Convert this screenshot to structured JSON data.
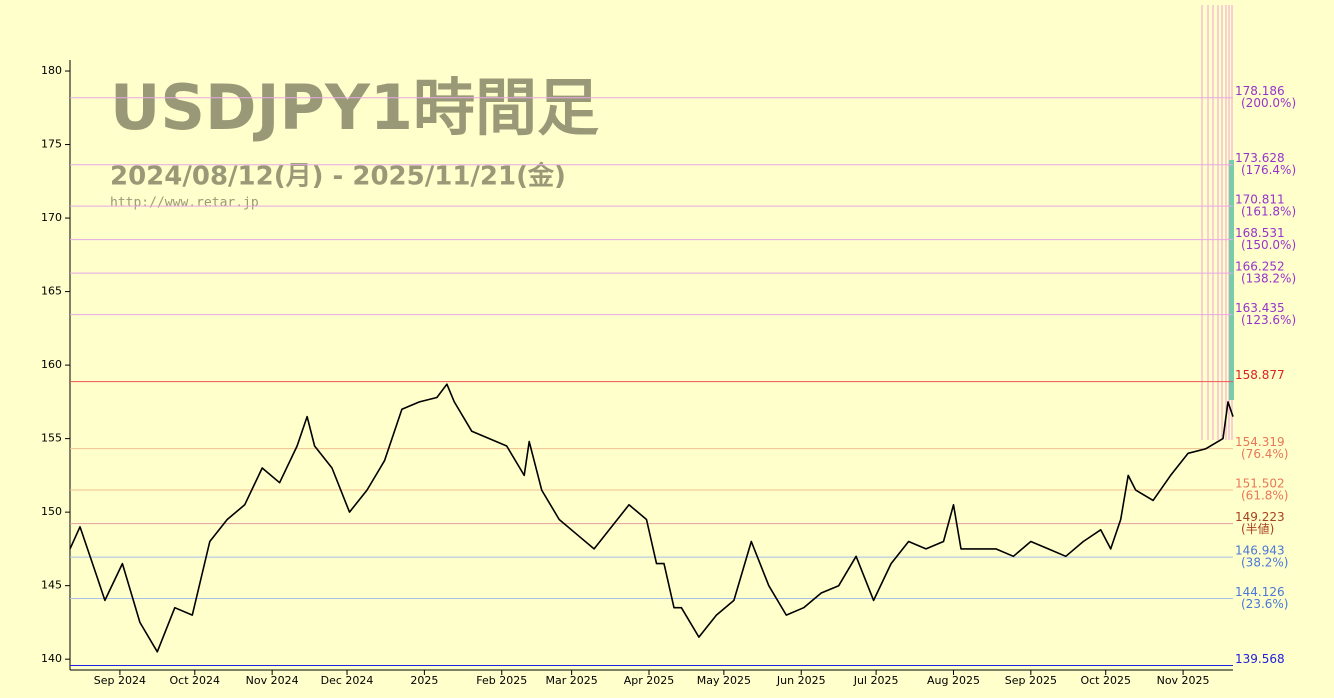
{
  "chart_data": {
    "type": "line",
    "title": "USDJPY1時間足",
    "subtitle": "2024/08/12(月) - 2025/11/21(金)",
    "source": "http://www.retar.jp",
    "color": "#000000",
    "x": [
      "2024-08-12",
      "2024-08-16",
      "2024-08-23",
      "2024-08-26",
      "2024-09-02",
      "2024-09-09",
      "2024-09-16",
      "2024-09-23",
      "2024-09-30",
      "2024-10-07",
      "2024-10-14",
      "2024-10-21",
      "2024-10-28",
      "2024-11-04",
      "2024-11-11",
      "2024-11-15",
      "2024-11-18",
      "2024-11-25",
      "2024-12-02",
      "2024-12-09",
      "2024-12-16",
      "2024-12-23",
      "2024-12-30",
      "2025-01-06",
      "2025-01-10",
      "2025-01-13",
      "2025-01-20",
      "2025-01-27",
      "2025-02-03",
      "2025-02-10",
      "2025-02-12",
      "2025-02-17",
      "2025-02-24",
      "2025-03-03",
      "2025-03-10",
      "2025-03-17",
      "2025-03-24",
      "2025-03-31",
      "2025-04-04",
      "2025-04-07",
      "2025-04-11",
      "2025-04-14",
      "2025-04-21",
      "2025-04-28",
      "2025-05-05",
      "2025-05-12",
      "2025-05-19",
      "2025-05-26",
      "2025-06-02",
      "2025-06-09",
      "2025-06-16",
      "2025-06-23",
      "2025-06-30",
      "2025-07-07",
      "2025-07-14",
      "2025-07-21",
      "2025-07-28",
      "2025-08-01",
      "2025-08-04",
      "2025-08-11",
      "2025-08-18",
      "2025-08-25",
      "2025-09-01",
      "2025-09-08",
      "2025-09-15",
      "2025-09-22",
      "2025-09-29",
      "2025-10-03",
      "2025-10-07",
      "2025-10-10",
      "2025-10-13",
      "2025-10-20",
      "2025-10-27",
      "2025-11-03",
      "2025-11-10",
      "2025-11-17",
      "2025-11-19",
      "2025-11-21"
    ],
    "values": [
      147.5,
      149.0,
      145.5,
      144.0,
      146.5,
      142.5,
      140.5,
      143.5,
      143.0,
      148.0,
      149.5,
      150.5,
      153.0,
      152.0,
      154.5,
      156.5,
      154.5,
      153.0,
      150.0,
      151.5,
      153.5,
      157.0,
      157.5,
      157.8,
      158.7,
      157.5,
      155.5,
      155.0,
      154.5,
      152.5,
      154.8,
      151.5,
      149.5,
      148.5,
      147.5,
      149.0,
      150.5,
      149.5,
      146.5,
      146.5,
      143.5,
      143.5,
      141.5,
      143.0,
      144.0,
      148.0,
      145.0,
      143.0,
      143.5,
      144.5,
      145.0,
      147.0,
      144.0,
      146.5,
      148.0,
      147.5,
      148.0,
      150.5,
      147.5,
      147.5,
      147.5,
      147.0,
      148.0,
      147.5,
      147.0,
      148.0,
      148.8,
      147.5,
      149.5,
      152.5,
      151.5,
      150.8,
      152.5,
      154.0,
      154.3,
      155.0,
      157.5,
      156.5
    ],
    "xlim": [
      "2024-08-12",
      "2025-11-21"
    ],
    "xticks": [
      {
        "value": "2024-09-01",
        "label": "Sep 2024"
      },
      {
        "value": "2024-10-01",
        "label": "Oct 2024"
      },
      {
        "value": "2024-11-01",
        "label": "Nov 2024"
      },
      {
        "value": "2024-12-01",
        "label": "Dec 2024"
      },
      {
        "value": "2025-01-01",
        "label": "2025"
      },
      {
        "value": "2025-02-01",
        "label": "Feb 2025"
      },
      {
        "value": "2025-03-01",
        "label": "Mar 2025"
      },
      {
        "value": "2025-04-01",
        "label": "Apr 2025"
      },
      {
        "value": "2025-05-01",
        "label": "May 2025"
      },
      {
        "value": "2025-06-01",
        "label": "Jun 2025"
      },
      {
        "value": "2025-07-01",
        "label": "Jul 2025"
      },
      {
        "value": "2025-08-01",
        "label": "Aug 2025"
      },
      {
        "value": "2025-09-01",
        "label": "Sep 2025"
      },
      {
        "value": "2025-10-01",
        "label": "Oct 2025"
      },
      {
        "value": "2025-11-01",
        "label": "Nov 2025"
      }
    ],
    "ylim": [
      139.4,
      180.75
    ],
    "yticks": [
      140,
      145,
      150,
      155,
      160,
      165,
      170,
      175,
      180
    ],
    "levels": [
      {
        "value": 178.186,
        "label": "(200.0%)",
        "color": "#9933cc",
        "line_color": "#e8a8e8"
      },
      {
        "value": 173.628,
        "label": "(176.4%)",
        "color": "#9933cc",
        "line_color": "#e8a8e8"
      },
      {
        "value": 170.811,
        "label": "(161.8%)",
        "color": "#9933cc",
        "line_color": "#e8a8e8"
      },
      {
        "value": 168.531,
        "label": "(150.0%)",
        "color": "#9933cc",
        "line_color": "#e8a8e8"
      },
      {
        "value": 166.252,
        "label": "(138.2%)",
        "color": "#9933cc",
        "line_color": "#e8a8e8"
      },
      {
        "value": 163.435,
        "label": "(123.6%)",
        "color": "#9933cc",
        "line_color": "#e8a8e8"
      },
      {
        "value": 158.877,
        "color": "#dd2222",
        "line_color": "#ee5555"
      },
      {
        "value": 154.319,
        "label": "(76.4%)",
        "color": "#e87858",
        "line_color": "#f0c090"
      },
      {
        "value": 151.502,
        "label": "(61.8%)",
        "color": "#e87858",
        "line_color": "#f0c090"
      },
      {
        "value": 149.223,
        "label": "(半値)",
        "color": "#a84020",
        "line_color": "#e0a0a0"
      },
      {
        "value": 146.943,
        "label": "(38.2%)",
        "color": "#4a78d8",
        "line_color": "#a8c0e8"
      },
      {
        "value": 144.126,
        "label": "(23.6%)",
        "color": "#4a78d8",
        "line_color": "#a8c0e8"
      },
      {
        "value": 139.568,
        "color": "#2020e0",
        "line_color": "#2020e0"
      }
    ]
  }
}
